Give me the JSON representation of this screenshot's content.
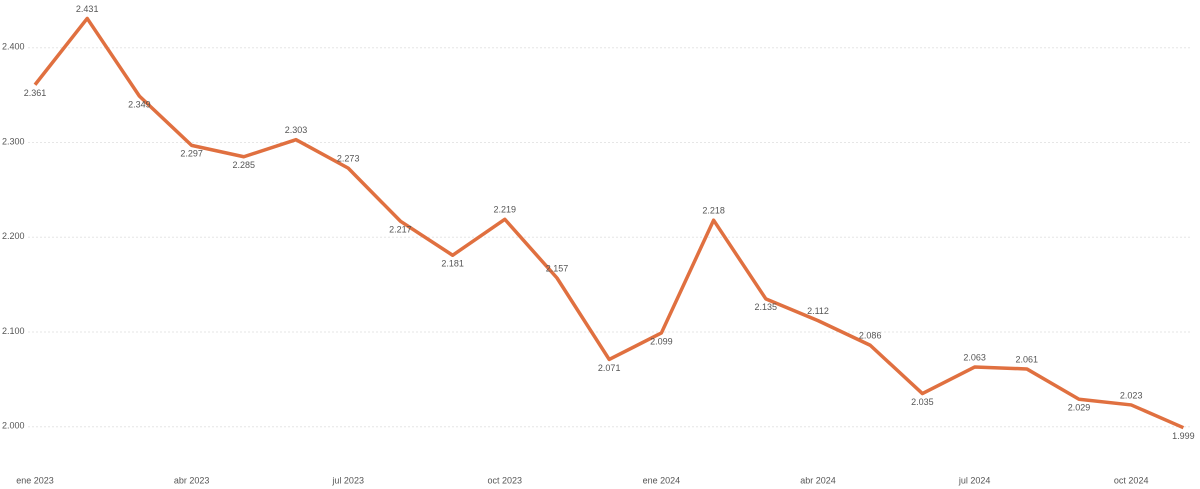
{
  "chart_data": {
    "type": "line",
    "categories": [
      "ene 2023",
      null,
      null,
      "abr 2023",
      null,
      null,
      "jul 2023",
      null,
      null,
      "oct 2023",
      null,
      null,
      "ene 2024",
      null,
      null,
      "abr 2024",
      null,
      null,
      "jul 2024",
      null,
      null,
      "oct 2024",
      null
    ],
    "series": [
      {
        "color": "#e07040",
        "values": [
          2361,
          2431,
          2349,
          2297,
          2285,
          2303,
          2273,
          2217,
          2181,
          2219,
          2157,
          2071,
          2099,
          2218,
          2135,
          2112,
          2086,
          2035,
          2063,
          2061,
          2029,
          2023,
          1999
        ],
        "value_labels": [
          "2.361",
          "2.431",
          "2.349",
          "2.297",
          "2.285",
          "2.303",
          "2.273",
          "2.217",
          "2.181",
          "2.219",
          "2.157",
          "2.071",
          "2.099",
          "2.218",
          "2.135",
          "2.112",
          "2.086",
          "2.035",
          "2.063",
          "2.061",
          "2.029",
          "2.023",
          "1.999"
        ]
      }
    ],
    "ylim": [
      1986,
      2442
    ],
    "yticks": [
      {
        "value": 2000,
        "label": "2.000"
      },
      {
        "value": 2100,
        "label": "2.100"
      },
      {
        "value": 2200,
        "label": "2.200"
      },
      {
        "value": 2300,
        "label": "2.300"
      },
      {
        "value": 2400,
        "label": "2.400"
      }
    ],
    "grid": true
  }
}
